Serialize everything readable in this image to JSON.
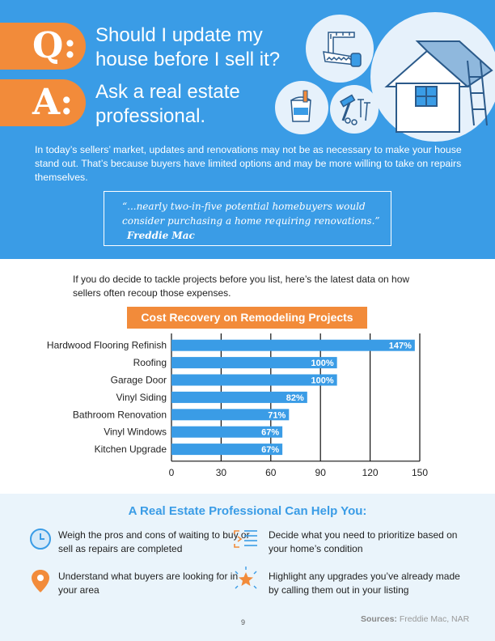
{
  "hero": {
    "q_letter": "Q:",
    "question": "Should I update my house before I sell it?",
    "a_letter": "A:",
    "answer": "Ask a real estate professional.",
    "intro": "In today’s sellers’ market, updates and renovations may not be as necessary to make your house stand out. That’s because buyers have limited options and may be more willing to take on repairs themselves.",
    "quote": "“...nearly two-in-five potential homebuyers would consider purchasing a home requiring renovations.”",
    "quote_source": "Freddie Mac"
  },
  "illustrations": [
    "tools-icon",
    "paint-bucket-icon",
    "hammer-nails-icon",
    "house-roof-icon"
  ],
  "lead": "If you do decide to tackle projects before you list, here’s the latest data on how sellers often recoup those expenses.",
  "chart_data": {
    "type": "bar",
    "orientation": "horizontal",
    "title": "Cost Recovery on Remodeling Projects",
    "categories": [
      "Hardwood Flooring Refinish",
      "Roofing",
      "Garage Door",
      "Vinyl Siding",
      "Bathroom Renovation",
      "Vinyl Windows",
      "Kitchen Upgrade"
    ],
    "values": [
      147,
      100,
      100,
      82,
      71,
      67,
      67
    ],
    "data_labels": [
      "147%",
      "100%",
      "100%",
      "82%",
      "71%",
      "67%",
      "67%"
    ],
    "x_ticks": [
      "0",
      "30",
      "60",
      "90",
      "120",
      "150"
    ],
    "xlim": [
      0,
      150
    ],
    "grid": true,
    "bar_color": "#3a9ce6"
  },
  "help": {
    "title": "A Real Estate Professional Can Help You:",
    "items": [
      {
        "icon": "clock-icon",
        "text": "Weigh the pros and cons of waiting to buy or sell as repairs are completed"
      },
      {
        "icon": "checklist-icon",
        "text": "Decide what you need to prioritize based on your home’s condition"
      },
      {
        "icon": "map-pin-icon",
        "text": "Understand what buyers are looking for in your area"
      },
      {
        "icon": "star-icon",
        "text": "Highlight any upgrades you’ve already made by calling them out in your listing"
      }
    ]
  },
  "footer": {
    "page_number": "9",
    "sources_label": "Sources:",
    "sources_text": "Freddie Mac, NAR"
  },
  "colors": {
    "blue": "#3a9ce6",
    "orange": "#f28b3a",
    "panel": "#eaf4fb"
  }
}
